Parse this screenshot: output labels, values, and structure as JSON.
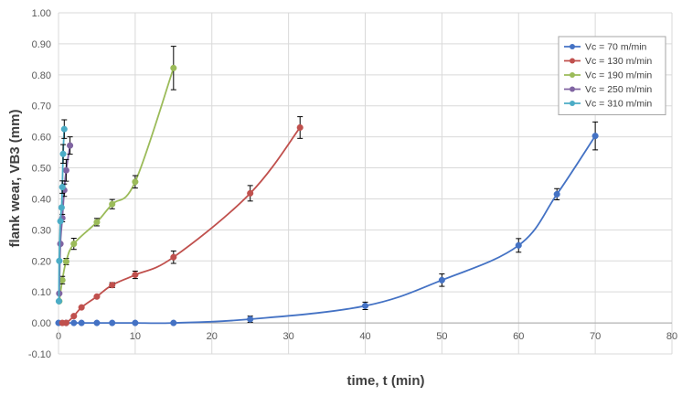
{
  "chart_data": {
    "type": "line",
    "title": "",
    "xlabel": "time,  t  (min)",
    "ylabel": "flank wear,  VB3 (mm)",
    "xlim": [
      0,
      80
    ],
    "ylim": [
      -0.1,
      1.0
    ],
    "x_ticks": [
      "0",
      "10",
      "20",
      "30",
      "40",
      "50",
      "60",
      "70",
      "80"
    ],
    "y_ticks": [
      "-0.10",
      "0.00",
      "0.10",
      "0.20",
      "0.30",
      "0.40",
      "0.50",
      "0.60",
      "0.70",
      "0.80",
      "0.90",
      "1.00"
    ],
    "grid": true,
    "legend_position": "top-right",
    "error_bars": true,
    "series": [
      {
        "name": "Vc = 70 m/min",
        "color": "#4472C4",
        "x": [
          0,
          1,
          2,
          3,
          5,
          7,
          10,
          15,
          25,
          40,
          50,
          60,
          65,
          70
        ],
        "y": [
          0.0,
          0.0,
          0.0,
          0.0,
          0.0,
          0.0,
          0.0,
          0.0,
          0.012,
          0.055,
          0.138,
          0.25,
          0.415,
          0.603
        ],
        "err": [
          0,
          0,
          0,
          0,
          0,
          0,
          0,
          0,
          0.01,
          0.012,
          0.02,
          0.022,
          0.018,
          0.045
        ]
      },
      {
        "name": "Vc = 130 m/min",
        "color": "#C0504D",
        "x": [
          0.5,
          1,
          2,
          3,
          5,
          7,
          10,
          15,
          25,
          31.5
        ],
        "y": [
          0.0,
          0.0,
          0.022,
          0.05,
          0.085,
          0.122,
          0.155,
          0.212,
          0.418,
          0.63
        ],
        "err": [
          0,
          0,
          0,
          0,
          0,
          0.008,
          0.012,
          0.02,
          0.025,
          0.035
        ]
      },
      {
        "name": "Vc = 190 m/min",
        "color": "#9BBB59",
        "x": [
          0.1,
          0.5,
          1,
          2,
          5,
          7,
          10,
          15
        ],
        "y": [
          0.07,
          0.138,
          0.198,
          0.255,
          0.325,
          0.383,
          0.455,
          0.822
        ],
        "err": [
          0,
          0.012,
          0.01,
          0.018,
          0.012,
          0.015,
          0.02,
          0.07
        ]
      },
      {
        "name": "Vc = 250 m/min",
        "color": "#8064A2",
        "x": [
          0.1,
          0.25,
          0.5,
          0.75,
          1,
          1.5
        ],
        "y": [
          0.095,
          0.255,
          0.338,
          0.428,
          0.492,
          0.572
        ],
        "err": [
          0,
          0,
          0.012,
          0.02,
          0.035,
          0.028
        ]
      },
      {
        "name": "Vc = 310 m/min",
        "color": "#4BACC6",
        "x": [
          0.05,
          0.1,
          0.25,
          0.4,
          0.5,
          0.6,
          0.75
        ],
        "y": [
          0.07,
          0.2,
          0.328,
          0.372,
          0.438,
          0.545,
          0.625
        ],
        "err": [
          0,
          0,
          0,
          0,
          0.02,
          0.03,
          0.03
        ]
      }
    ]
  }
}
